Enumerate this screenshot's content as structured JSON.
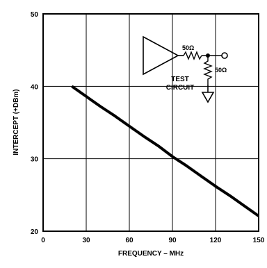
{
  "chart_data": {
    "type": "line",
    "xlabel": "FREQUENCY – MHz",
    "ylabel": "INTERCEPT (+DBm)",
    "xlim": [
      0,
      150
    ],
    "ylim": [
      20,
      50
    ],
    "x_ticks": [
      0,
      30,
      60,
      90,
      120,
      150
    ],
    "y_ticks": [
      20,
      30,
      40,
      50
    ],
    "grid": true,
    "series": [
      {
        "x": [
          20,
          30,
          40,
          50,
          60,
          70,
          80,
          90,
          100,
          110,
          120,
          130,
          140,
          150
        ],
        "y": [
          40.0,
          38.6,
          37.2,
          35.9,
          34.5,
          33.1,
          31.8,
          30.3,
          29.0,
          27.6,
          26.2,
          24.9,
          23.5,
          22.1
        ]
      }
    ],
    "annotation": {
      "label_line1": "TEST",
      "label_line2": "CIRCUIT",
      "resistor_series": "50Ω",
      "resistor_shunt": "50Ω"
    }
  }
}
